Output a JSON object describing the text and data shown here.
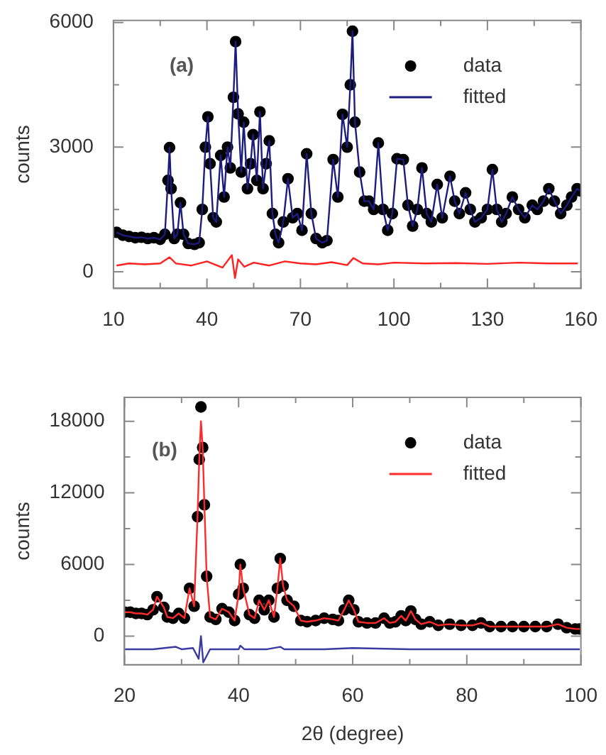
{
  "chart_data": [
    {
      "type": "scatter",
      "ylabel": "counts",
      "annotations": [
        "(a)"
      ],
      "legend": "top right",
      "xlim": [
        10,
        160
      ],
      "xticks": [
        10,
        {
          "value": 25,
          "label": null
        },
        40,
        {
          "value": 55,
          "label": null
        },
        70,
        {
          "value": 85,
          "label": null
        },
        100,
        {
          "value": 115,
          "label": null
        },
        130,
        {
          "value": 145,
          "label": null
        },
        160
      ],
      "ylim": [
        -400,
        6050
      ],
      "yticks": [
        0,
        {
          "value": 1500,
          "label": null
        },
        3000,
        {
          "value": 4500,
          "label": null
        },
        6000
      ],
      "x": [
        11,
        13,
        15,
        17,
        19,
        21,
        23,
        25,
        26.5,
        27.5,
        28,
        28.5,
        29.5,
        30.5,
        31.5,
        32.5,
        34,
        36,
        37.5,
        38.5,
        39.5,
        40.3,
        41,
        42,
        43,
        44.4,
        45.5,
        46.6,
        47.5,
        48.5,
        49.2,
        50,
        51,
        51.8,
        53,
        54,
        54.8,
        56,
        57,
        58,
        59,
        60,
        61,
        62,
        63,
        64.5,
        66,
        67.5,
        69,
        70.5,
        72,
        73.5,
        75,
        77,
        78.5,
        80.5,
        82,
        83.5,
        85,
        86,
        86.7,
        87.5,
        89,
        90.5,
        92,
        93.5,
        95,
        96.5,
        98,
        99.5,
        101,
        103,
        104.5,
        106,
        107.5,
        109,
        110.5,
        112,
        113.9,
        115.5,
        118,
        119.5,
        121,
        123,
        124.5,
        126,
        128,
        130,
        131.6,
        133,
        134.6,
        136,
        138,
        140,
        142,
        144.4,
        146,
        148,
        149.7,
        151.5,
        153.5,
        155.5,
        157,
        158.8,
        159.5
      ],
      "series": [
        {
          "name": "data",
          "marker": "circle",
          "color": "#000000",
          "values": [
            950,
            880,
            850,
            820,
            830,
            800,
            820,
            780,
            900,
            2200,
            2990,
            2000,
            800,
            900,
            1660,
            900,
            680,
            660,
            700,
            1500,
            3000,
            3730,
            2600,
            1300,
            1200,
            2800,
            1800,
            3000,
            2500,
            4200,
            5540,
            3800,
            2400,
            3600,
            2000,
            2600,
            3300,
            2200,
            3850,
            2000,
            2600,
            3150,
            1400,
            900,
            700,
            1200,
            2240,
            1300,
            1400,
            1000,
            2840,
            1400,
            800,
            700,
            750,
            2700,
            1800,
            3790,
            3000,
            4500,
            5790,
            3600,
            2400,
            1700,
            1700,
            1500,
            3100,
            1500,
            1000,
            1400,
            2720,
            2700,
            1600,
            1100,
            1500,
            2500,
            1400,
            1200,
            2100,
            1300,
            2300,
            1700,
            1400,
            1900,
            1500,
            1200,
            1300,
            1500,
            2460,
            1500,
            1200,
            1400,
            1800,
            1500,
            1300,
            1600,
            1500,
            1700,
            2000,
            1700,
            1400,
            1600,
            1800,
            2000,
            1950
          ]
        },
        {
          "name": "fitted",
          "type": "line",
          "marker": "none",
          "color": "#1c1c80",
          "values": [
            950,
            880,
            850,
            820,
            830,
            800,
            820,
            780,
            900,
            2200,
            2990,
            2000,
            800,
            900,
            1660,
            900,
            680,
            660,
            700,
            1500,
            3000,
            3730,
            2600,
            1300,
            1200,
            2800,
            1800,
            3000,
            2500,
            4200,
            5540,
            3800,
            2400,
            3600,
            2000,
            2600,
            3300,
            2200,
            3850,
            2000,
            2600,
            3150,
            1400,
            900,
            700,
            1200,
            2240,
            1300,
            1400,
            1000,
            2840,
            1400,
            800,
            700,
            750,
            2700,
            1800,
            3790,
            3000,
            4500,
            5790,
            3600,
            2400,
            1700,
            1700,
            1500,
            3100,
            1500,
            1000,
            1400,
            2720,
            2700,
            1600,
            1100,
            1500,
            2500,
            1400,
            1200,
            2100,
            1300,
            2300,
            1700,
            1400,
            1900,
            1500,
            1200,
            1300,
            1500,
            2460,
            1500,
            1200,
            1400,
            1800,
            1500,
            1300,
            1600,
            1500,
            1700,
            2000,
            1700,
            1400,
            1600,
            1800,
            2000,
            1950
          ]
        },
        {
          "type": "line",
          "marker": "none",
          "color": "#ff2020",
          "x": [
            11,
            15,
            20,
            25,
            28,
            30,
            35,
            40,
            45,
            48,
            49,
            50,
            52,
            55,
            60,
            65,
            70,
            75,
            80,
            85,
            87,
            90,
            95,
            100,
            110,
            120,
            130,
            140,
            150,
            159
          ],
          "values": [
            150,
            200,
            180,
            200,
            350,
            200,
            150,
            250,
            100,
            400,
            -150,
            300,
            120,
            220,
            150,
            250,
            200,
            180,
            230,
            160,
            330,
            200,
            180,
            220,
            200,
            210,
            190,
            220,
            200,
            200
          ]
        }
      ]
    },
    {
      "type": "scatter",
      "ylabel": "counts",
      "xlabel": "2θ (degree)",
      "annotations": [
        "(b)"
      ],
      "legend": "top right",
      "xlim": [
        20,
        100
      ],
      "xticks": [
        20,
        {
          "value": 30,
          "label": null
        },
        40,
        {
          "value": 50,
          "label": null
        },
        60,
        {
          "value": 70,
          "label": null
        },
        80,
        {
          "value": 90,
          "label": null
        },
        100
      ],
      "ylim": [
        -2400,
        20000
      ],
      "yticks": [
        0,
        {
          "value": 3000,
          "label": null
        },
        6000,
        {
          "value": 9000,
          "label": null
        },
        12000,
        {
          "value": 15000,
          "label": null
        },
        18000
      ],
      "x": [
        20,
        21,
        22,
        23,
        24,
        25,
        25.7,
        26.9,
        27.5,
        28.5,
        29.5,
        30.5,
        31.4,
        32.2,
        32.8,
        33.1,
        33.4,
        33.7,
        34,
        34.4,
        35,
        36,
        37.1,
        38.3,
        39.3,
        40,
        40.3,
        40.8,
        41.9,
        42.8,
        43.6,
        44.5,
        45.3,
        46.2,
        46.8,
        47.3,
        47.8,
        48.5,
        49.7,
        50.9,
        52,
        53.5,
        55,
        56.5,
        57.5,
        58.5,
        59.3,
        60.2,
        61,
        62.5,
        64,
        65.5,
        66.5,
        67.5,
        68.5,
        69.3,
        70.2,
        71,
        72,
        73.5,
        75,
        77,
        79,
        81,
        82.5,
        84,
        86,
        88,
        90,
        92,
        94,
        96,
        97.5,
        99,
        99.8
      ],
      "series": [
        {
          "name": "data",
          "marker": "circle",
          "color": "#000000",
          "values": [
            2000,
            2000,
            1900,
            1900,
            1800,
            2200,
            3300,
            2400,
            1600,
            1500,
            1900,
            1500,
            4000,
            2500,
            10000,
            14800,
            19200,
            15800,
            11000,
            5000,
            1600,
            1400,
            2300,
            2000,
            1300,
            3500,
            6000,
            4000,
            1800,
            1500,
            3000,
            2200,
            3000,
            1600,
            4000,
            6500,
            4200,
            3000,
            2500,
            1300,
            1200,
            1300,
            1500,
            1400,
            1300,
            2200,
            3000,
            2200,
            1200,
            1100,
            1100,
            1500,
            1100,
            1200,
            1700,
            1300,
            2100,
            1400,
            1000,
            1200,
            900,
            1000,
            900,
            900,
            1100,
            800,
            800,
            800,
            800,
            800,
            800,
            1000,
            700,
            600,
            600
          ]
        },
        {
          "name": "fitted",
          "type": "line",
          "marker": "none",
          "color": "#ff2a2a",
          "values": [
            2000,
            2000,
            1900,
            1900,
            1800,
            2200,
            3300,
            2400,
            1600,
            1500,
            1900,
            1500,
            4000,
            2500,
            10000,
            14800,
            18000,
            15800,
            11000,
            5000,
            1600,
            1400,
            2300,
            2000,
            1300,
            3500,
            6000,
            4000,
            1800,
            1500,
            3000,
            2200,
            3000,
            1600,
            4000,
            6500,
            4200,
            3000,
            2500,
            1300,
            1200,
            1300,
            1500,
            1400,
            1300,
            2200,
            3000,
            2200,
            1200,
            1100,
            1100,
            1500,
            1100,
            1200,
            1700,
            1300,
            2100,
            1400,
            1000,
            1200,
            900,
            1000,
            900,
            900,
            1100,
            800,
            800,
            800,
            800,
            800,
            800,
            1000,
            700,
            600,
            600
          ]
        },
        {
          "type": "line",
          "marker": "none",
          "color": "#3a3aa0",
          "x": [
            20,
            25,
            29,
            30,
            32,
            33,
            33.4,
            33.8,
            35,
            40,
            40.3,
            41,
            45,
            47.3,
            48,
            55,
            60,
            70,
            80,
            90,
            99.8
          ],
          "values": [
            -1100,
            -1100,
            -900,
            -1100,
            -1000,
            -1900,
            0,
            -2200,
            -1100,
            -1100,
            -800,
            -1100,
            -1100,
            -900,
            -1100,
            -1100,
            -1000,
            -1100,
            -1100,
            -1100,
            -1100
          ]
        }
      ]
    }
  ]
}
